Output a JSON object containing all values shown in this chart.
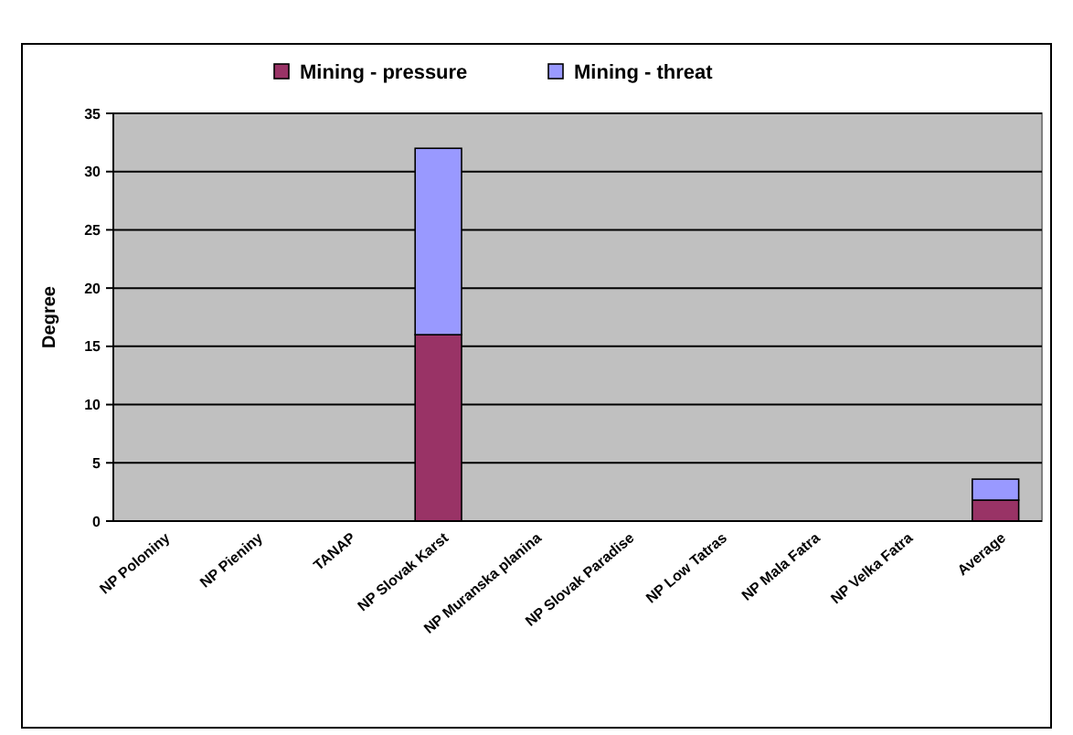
{
  "chart_data": {
    "type": "bar",
    "stacked": true,
    "ylabel": "Degree",
    "categories": [
      "NP Poloniny",
      "NP Pieniny",
      "TANAP",
      "NP Slovak Karst",
      "NP Muranska planina",
      "NP Slovak Paradise",
      "NP Low Tatras",
      "NP Mala Fatra",
      "NP Velka Fatra",
      "Average"
    ],
    "series": [
      {
        "name": "Mining - pressure",
        "color": "#993366",
        "values": [
          0,
          0,
          0,
          16,
          0,
          0,
          0,
          0,
          0,
          1.8
        ]
      },
      {
        "name": "Mining - threat",
        "color": "#9999ff",
        "values": [
          0,
          0,
          0,
          16,
          0,
          0,
          0,
          0,
          0,
          1.8
        ]
      }
    ],
    "ylim": [
      0,
      35
    ],
    "yticks": [
      0,
      5,
      10,
      15,
      20,
      25,
      30,
      35
    ],
    "grid": "y",
    "legend": "top"
  }
}
